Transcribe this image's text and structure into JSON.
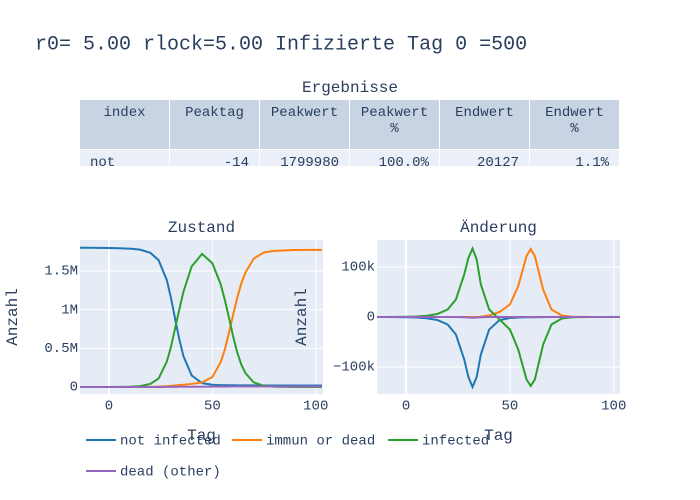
{
  "title": "r0= 5.00 rlock=5.00 Infizierte Tag 0 =500",
  "table": {
    "title": "Ergebnisse",
    "header": [
      "index",
      "Peaktag",
      "Peakwert",
      "Peakwert %",
      "Endwert",
      "Endwert %"
    ],
    "rows": [
      [
        "not",
        "-14",
        "1799980",
        "100.0%",
        "20127",
        "1.1%"
      ]
    ]
  },
  "chart_data": [
    {
      "type": "line",
      "title": "Zustand",
      "x_label": "Tag",
      "y_label": "Anzahl",
      "xlim": [
        -14,
        103.5
      ],
      "xticks": [
        0,
        50,
        100
      ],
      "ylim": [
        -90000,
        1900000
      ],
      "yticks": [
        0,
        {
          "value": 500000,
          "label": "0.5M"
        },
        {
          "value": 1000000,
          "label": "1M"
        },
        {
          "value": 1500000,
          "label": "1.5M"
        }
      ],
      "grid": true,
      "x": [
        -14,
        -10,
        -5,
        0,
        5,
        10,
        15,
        20,
        24,
        28,
        30,
        32,
        34,
        36,
        40,
        45,
        50,
        54,
        56,
        58,
        60,
        62,
        64,
        66,
        70,
        75,
        80,
        90,
        100,
        103
      ],
      "series": [
        {
          "name": "not infected",
          "color": "#1f77b4",
          "values": [
            1799980,
            1799500,
            1798000,
            1796000,
            1793000,
            1788000,
            1775000,
            1735000,
            1640000,
            1380000,
            1150000,
            880000,
            620000,
            400000,
            150000,
            50000,
            30000,
            25000,
            24000,
            23000,
            22500,
            22000,
            21500,
            21000,
            20700,
            20500,
            20300,
            20200,
            20150,
            20127
          ]
        },
        {
          "name": "immun or dead",
          "color": "#ff7f0e",
          "values": [
            0,
            0,
            0,
            0,
            0,
            0,
            1000,
            2000,
            5000,
            10000,
            15000,
            20000,
            25000,
            30000,
            40000,
            60000,
            130000,
            320000,
            480000,
            700000,
            930000,
            1150000,
            1340000,
            1480000,
            1660000,
            1740000,
            1760000,
            1770000,
            1772000,
            1772000
          ]
        },
        {
          "name": "infected",
          "color": "#2ca02c",
          "values": [
            100,
            150,
            250,
            500,
            1500,
            4000,
            12000,
            40000,
            110000,
            330000,
            520000,
            760000,
            1000000,
            1230000,
            1560000,
            1720000,
            1600000,
            1330000,
            1130000,
            900000,
            660000,
            450000,
            290000,
            180000,
            60000,
            15000,
            4000,
            500,
            100,
            50
          ]
        },
        {
          "name": "dead (other)",
          "color": "#9467bd",
          "values": [
            0,
            0,
            0,
            0,
            0,
            100,
            300,
            600,
            1000,
            1500,
            2000,
            2500,
            3000,
            3500,
            4000,
            4500,
            5000,
            5500,
            5700,
            5900,
            6100,
            6300,
            6500,
            6600,
            6800,
            6900,
            7000,
            7100,
            7200,
            7200
          ]
        }
      ]
    },
    {
      "type": "line",
      "title": "Änderung",
      "x_label": "Tag",
      "y_label": "Anzahl",
      "xlim": [
        -14,
        103
      ],
      "xticks": [
        0,
        50,
        100
      ],
      "ylim": [
        -154000,
        154000
      ],
      "yticks": [
        {
          "value": -100000,
          "label": "−100k"
        },
        0,
        {
          "value": 100000,
          "label": "100k"
        }
      ],
      "grid": true,
      "x": [
        -14,
        -10,
        -5,
        0,
        5,
        10,
        15,
        20,
        24,
        28,
        30,
        32,
        34,
        36,
        40,
        45,
        50,
        54,
        56,
        58,
        60,
        62,
        64,
        66,
        70,
        75,
        80,
        90,
        100,
        103
      ],
      "series": [
        {
          "color": "#1f77b4",
          "values": [
            0,
            -100,
            -200,
            -400,
            -1000,
            -2500,
            -6000,
            -15000,
            -35000,
            -85000,
            -120000,
            -140000,
            -120000,
            -75000,
            -25000,
            -6000,
            -2000,
            -1000,
            -800,
            -600,
            -500,
            -400,
            -300,
            -200,
            -100,
            -50,
            0,
            0,
            0,
            0
          ]
        },
        {
          "color": "#ff7f0e",
          "values": [
            0,
            0,
            0,
            0,
            0,
            0,
            0,
            0,
            0,
            0,
            0,
            0,
            0,
            500,
            3000,
            10000,
            25000,
            62000,
            92000,
            122000,
            136000,
            122000,
            88000,
            55000,
            15000,
            3000,
            500,
            0,
            0,
            0
          ]
        },
        {
          "color": "#2ca02c",
          "values": [
            0,
            100,
            200,
            400,
            1000,
            2500,
            6000,
            15000,
            35000,
            85000,
            118000,
            137000,
            115000,
            65000,
            15000,
            -5000,
            -25000,
            -65000,
            -95000,
            -125000,
            -138000,
            -125000,
            -90000,
            -55000,
            -15000,
            -3000,
            -500,
            0,
            0,
            0
          ]
        },
        {
          "color": "#9467bd",
          "values": [
            0,
            0,
            0,
            0,
            0,
            0,
            0,
            0,
            0,
            -500,
            -1000,
            -1500,
            -1000,
            -500,
            0,
            0,
            0,
            0,
            0,
            0,
            0,
            0,
            0,
            0,
            0,
            0,
            0,
            0,
            0,
            0
          ]
        }
      ]
    }
  ]
}
